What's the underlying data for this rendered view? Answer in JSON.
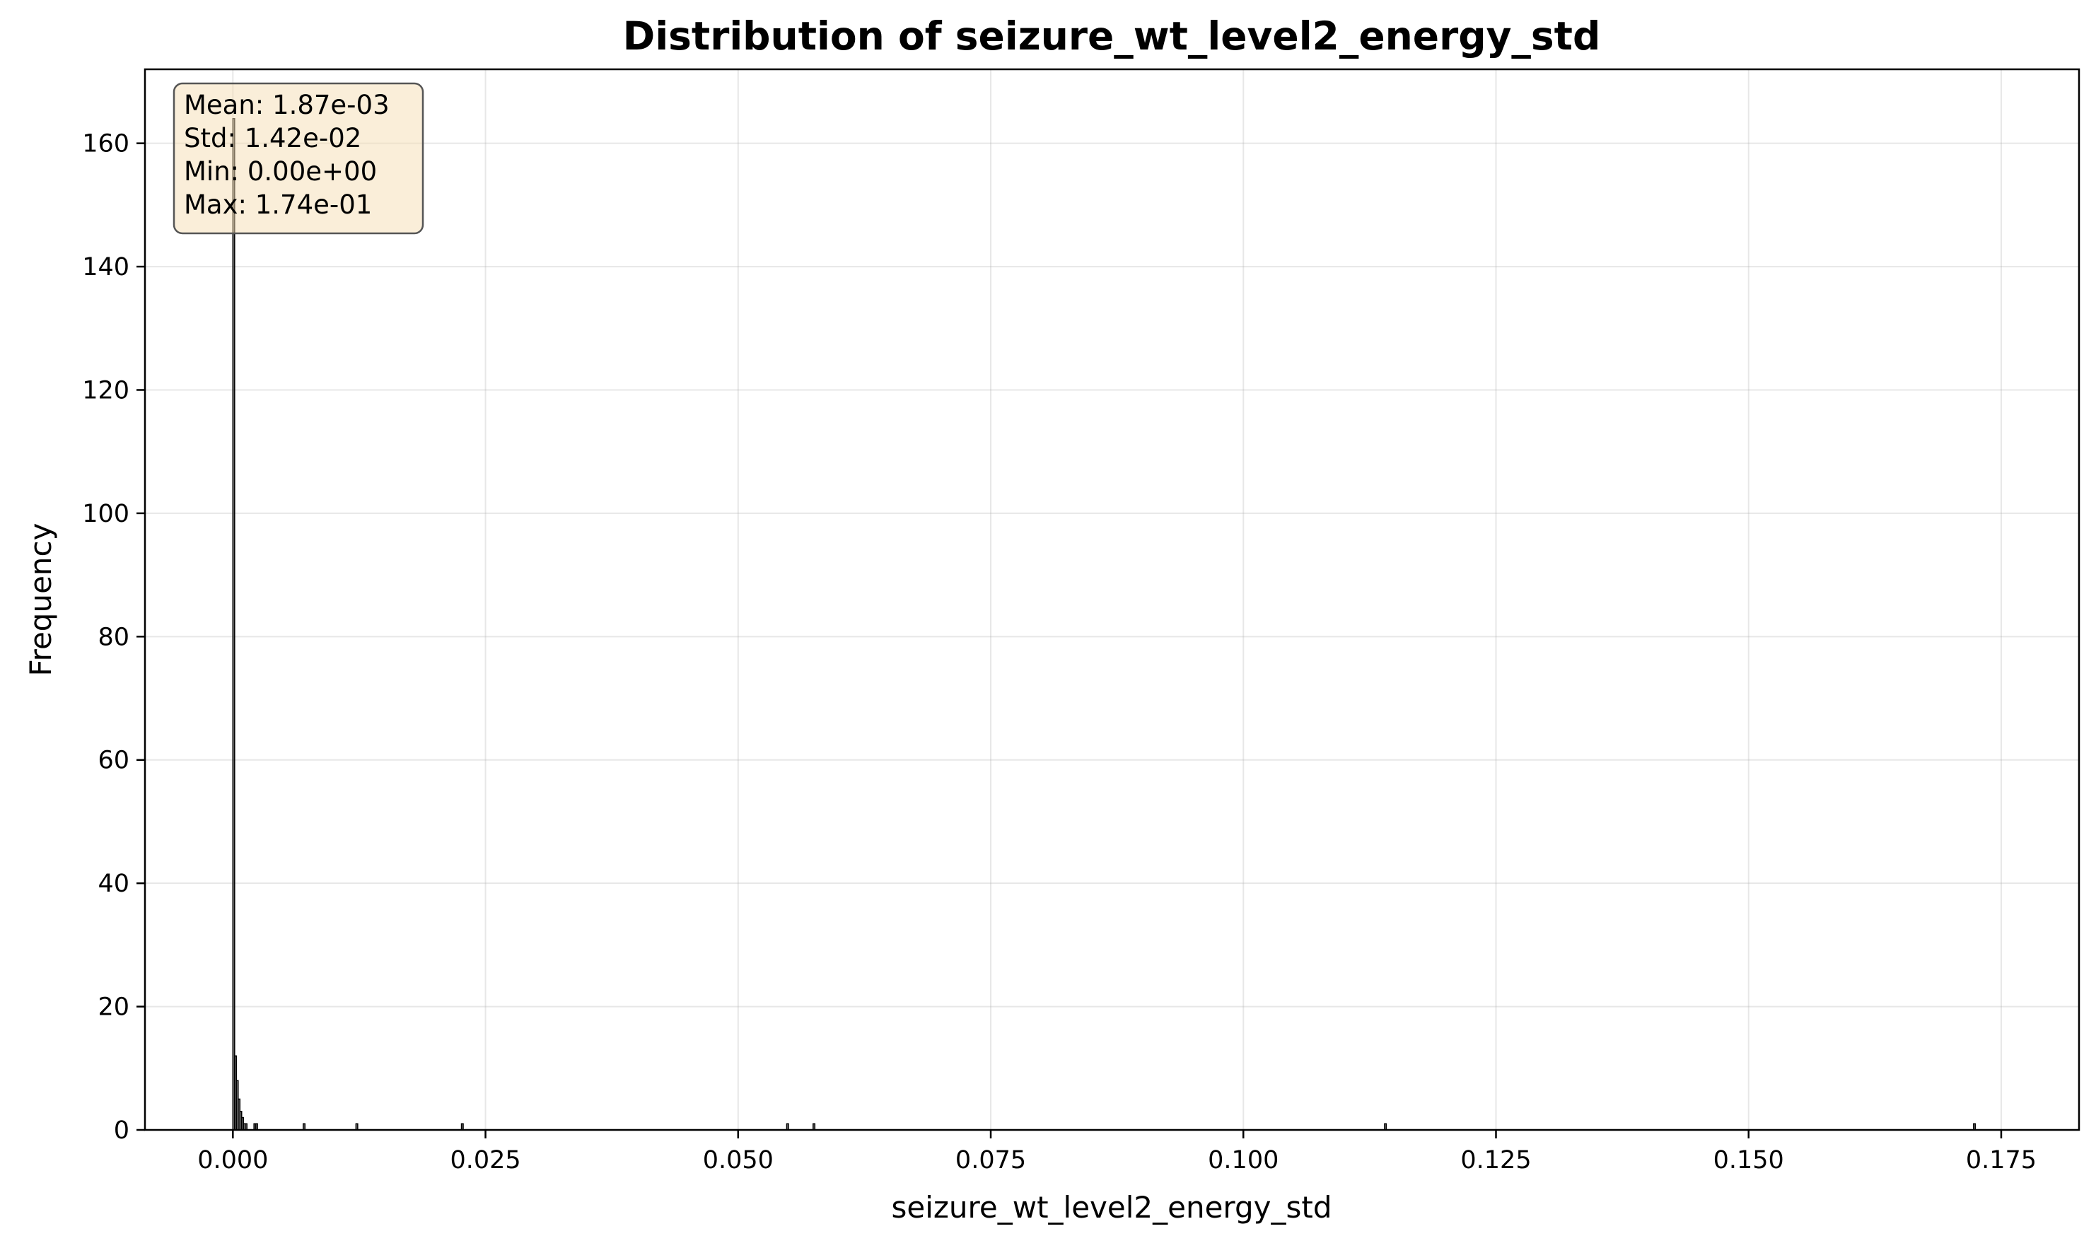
{
  "chart_data": {
    "type": "bar",
    "title": "Distribution of seizure_wt_level2_energy_std",
    "xlabel": "seizure_wt_level2_energy_std",
    "ylabel": "Frequency",
    "xlim": [
      -0.0087,
      0.1827
    ],
    "ylim": [
      0,
      172
    ],
    "xticks": [
      0.0,
      0.025,
      0.05,
      0.075,
      0.1,
      0.125,
      0.15,
      0.175
    ],
    "xtick_labels": [
      "0.000",
      "0.025",
      "0.050",
      "0.075",
      "0.100",
      "0.125",
      "0.150",
      "0.175"
    ],
    "yticks": [
      0,
      20,
      40,
      60,
      80,
      100,
      120,
      140,
      160
    ],
    "ytick_labels": [
      "0",
      "20",
      "40",
      "60",
      "80",
      "100",
      "120",
      "140",
      "160"
    ],
    "grid": true,
    "bar_color": "#4a4a4a",
    "bar_edge_color": "#000000",
    "bin_width": 0.000174,
    "bins": [
      {
        "x": 0.0,
        "count": 164
      },
      {
        "x": 0.000174,
        "count": 12
      },
      {
        "x": 0.000348,
        "count": 8
      },
      {
        "x": 0.000522,
        "count": 5
      },
      {
        "x": 0.000696,
        "count": 3
      },
      {
        "x": 0.00087,
        "count": 2
      },
      {
        "x": 0.001044,
        "count": 1
      },
      {
        "x": 0.001218,
        "count": 1
      },
      {
        "x": 0.002088,
        "count": 1
      },
      {
        "x": 0.002262,
        "count": 1
      },
      {
        "x": 0.00696,
        "count": 1
      },
      {
        "x": 0.01218,
        "count": 1
      },
      {
        "x": 0.02262,
        "count": 1
      },
      {
        "x": 0.05481,
        "count": 1
      },
      {
        "x": 0.05742,
        "count": 1
      },
      {
        "x": 0.11397,
        "count": 1
      },
      {
        "x": 0.17226,
        "count": 1
      }
    ],
    "stats_box": {
      "lines": [
        "Mean: 1.87e-03",
        "Std: 1.42e-02",
        "Min: 0.00e+00",
        "Max: 1.74e-01"
      ],
      "background_color": "#f5deb3",
      "border_color": "#555555"
    }
  }
}
